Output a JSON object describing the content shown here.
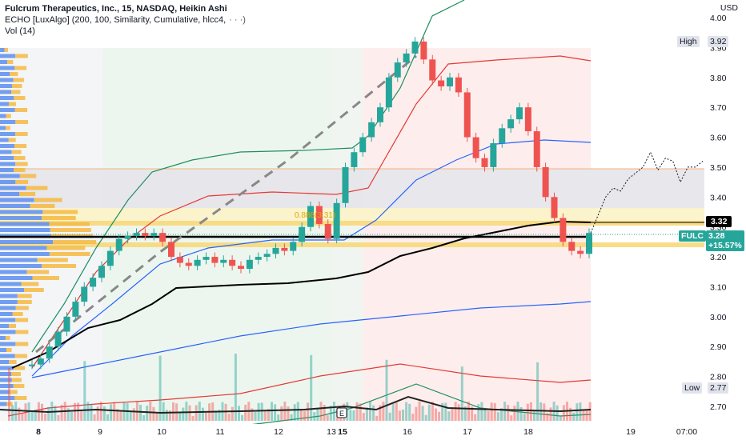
{
  "legend": {
    "symbol_line": "Fulcrum Therapeutics, Inc., 15, NASDAQ, Heikin Ashi",
    "indicator_line": "ECHO [LuxAlgo] (200, 100, Similarity, Cumulative, hlcc4,",
    "indicator_more": "· · ·)",
    "vol_line": "Vol (14)"
  },
  "price_axis": {
    "unit": "USD",
    "ticks": [
      "4.00",
      "3.90",
      "3.80",
      "3.70",
      "3.60",
      "3.50",
      "3.40",
      "3.30",
      "3.20",
      "3.10",
      "3.00",
      "2.90",
      "2.80",
      "2.70"
    ],
    "high_label": "High",
    "high_value": "3.92",
    "low_label": "Low",
    "low_value": "2.77",
    "level_value": "3.32",
    "ticker": "FULC",
    "last_price": "3.28",
    "change_pct": "+15.57%"
  },
  "time_axis": {
    "labels": [
      "8",
      "9",
      "10",
      "11",
      "12",
      "13",
      "15",
      "16",
      "17",
      "18",
      "19",
      "07:00"
    ]
  },
  "annotations": {
    "fib_label": "0.888(3.31)",
    "earnings_marker": "E"
  },
  "colors": {
    "up": "#26a69a",
    "down": "#ef5350",
    "background": "#ffffff",
    "echo_dashed": "#888888",
    "black_line": "#000000",
    "blue_band": "#2962ff",
    "red_band": "#e53935",
    "green_band": "#1e8e5e",
    "price_label_bg": "#26a69a",
    "level_bg": "#000000"
  },
  "chart_data": {
    "type": "candlestick",
    "title": "Fulcrum Therapeutics, Inc., 15, NASDAQ, Heikin Ashi",
    "ylabel": "USD",
    "ylim": [
      2.66,
      4.02
    ],
    "x_labels": [
      "8",
      "9",
      "10",
      "11",
      "12",
      "13",
      "15",
      "16",
      "17",
      "18",
      "19",
      "07:00"
    ],
    "last_close": 3.28,
    "session_high": 3.92,
    "session_low": 2.77,
    "key_level": 3.32,
    "fib_level": 3.31,
    "close_path": [
      2.84,
      2.86,
      2.9,
      2.95,
      3.0,
      3.05,
      3.1,
      3.13,
      3.17,
      3.22,
      3.26,
      3.27,
      3.28,
      3.27,
      3.28,
      3.25,
      3.2,
      3.18,
      3.17,
      3.19,
      3.2,
      3.18,
      3.19,
      3.17,
      3.16,
      3.19,
      3.2,
      3.21,
      3.23,
      3.22,
      3.25,
      3.3,
      3.37,
      3.31,
      3.26,
      3.38,
      3.5,
      3.55,
      3.6,
      3.65,
      3.7,
      3.8,
      3.85,
      3.88,
      3.92,
      3.86,
      3.79,
      3.77,
      3.8,
      3.75,
      3.6,
      3.53,
      3.5,
      3.58,
      3.63,
      3.66,
      3.7,
      3.62,
      3.5,
      3.4,
      3.33,
      3.25,
      3.22,
      3.21,
      3.28
    ],
    "forecast_path": [
      3.28,
      3.34,
      3.4,
      3.43,
      3.42,
      3.46,
      3.48,
      3.5,
      3.55,
      3.49,
      3.53,
      3.52,
      3.45,
      3.5,
      3.5,
      3.52
    ]
  }
}
